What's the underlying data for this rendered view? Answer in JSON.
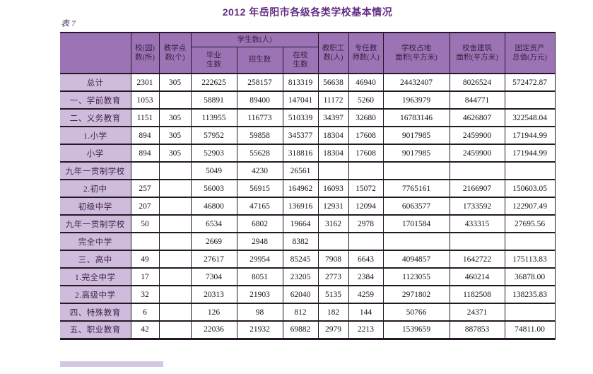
{
  "page": {
    "title": "2012 年岳阳市各级各类学校基本情况",
    "table_label": "表 7"
  },
  "colors": {
    "header_bg": "#9c74b6",
    "label_bg": "#cfbbdc",
    "title_color": "#632e82",
    "border": "#241726"
  },
  "table": {
    "header": {
      "col_school_count": "校(园)\n数(所)",
      "col_teaching_points": "教学点\n数(个)",
      "group_students": "学生数(人)",
      "col_graduates": "毕业\n生数",
      "col_enrolled": "招生数",
      "col_current_students": "在校\n生数",
      "col_staff": "教职工\n数(人)",
      "col_fulltime_teachers": "专任教\n师数(人)",
      "col_land_area": "学校占地\n面积(平方米)",
      "col_building_area": "校舍建筑\n面积(平方米)",
      "col_fixed_assets": "固定资产\n总值(万元)"
    },
    "rows": [
      {
        "label": "总计",
        "cells": [
          "2301",
          "305",
          "222625",
          "258157",
          "813319",
          "56638",
          "46940",
          "24432407",
          "8026524",
          "572472.87"
        ]
      },
      {
        "label": "一、学前教育",
        "cells": [
          "1053",
          "",
          "58891",
          "89400",
          "147041",
          "11172",
          "5260",
          "1963979",
          "844771",
          ""
        ]
      },
      {
        "label": "二、义务教育",
        "cells": [
          "1151",
          "305",
          "113955",
          "116773",
          "510339",
          "34397",
          "32680",
          "16783146",
          "4626807",
          "322548.04"
        ]
      },
      {
        "label": "1.小学",
        "cells": [
          "894",
          "305",
          "57952",
          "59858",
          "345377",
          "18304",
          "17608",
          "9017985",
          "2459900",
          "171944.99"
        ]
      },
      {
        "label": "小学",
        "cells": [
          "894",
          "305",
          "52903",
          "55628",
          "318816",
          "18304",
          "17608",
          "9017985",
          "2459900",
          "171944.99"
        ]
      },
      {
        "label": "九年一贯制学校",
        "cells": [
          "",
          "",
          "5049",
          "4230",
          "26561",
          "",
          "",
          "",
          "",
          ""
        ]
      },
      {
        "label": "2.初中",
        "cells": [
          "257",
          "",
          "56003",
          "56915",
          "164962",
          "16093",
          "15072",
          "7765161",
          "2166907",
          "150603.05"
        ]
      },
      {
        "label": "初级中学",
        "cells": [
          "207",
          "",
          "46800",
          "47165",
          "136916",
          "12931",
          "12094",
          "6063577",
          "1733592",
          "122907.49"
        ]
      },
      {
        "label": "九年一贯制学校",
        "cells": [
          "50",
          "",
          "6534",
          "6802",
          "19664",
          "3162",
          "2978",
          "1701584",
          "433315",
          "27695.56"
        ]
      },
      {
        "label": "完全中学",
        "cells": [
          "",
          "",
          "2669",
          "2948",
          "8382",
          "",
          "",
          "",
          "",
          ""
        ]
      },
      {
        "label": "三、高中",
        "cells": [
          "49",
          "",
          "27617",
          "29954",
          "85245",
          "7908",
          "6643",
          "4094857",
          "1642722",
          "175113.83"
        ]
      },
      {
        "label": "1.完全中学",
        "cells": [
          "17",
          "",
          "7304",
          "8051",
          "23205",
          "2773",
          "2384",
          "1123055",
          "460214",
          "36878.00"
        ]
      },
      {
        "label": "2.高级中学",
        "cells": [
          "32",
          "",
          "20313",
          "21903",
          "62040",
          "5135",
          "4259",
          "2971802",
          "1182508",
          "138235.83"
        ]
      },
      {
        "label": "四、特殊教育",
        "cells": [
          "6",
          "",
          "126",
          "98",
          "812",
          "182",
          "144",
          "50766",
          "24371",
          ""
        ]
      },
      {
        "label": "五、职业教育",
        "cells": [
          "42",
          "",
          "22036",
          "21932",
          "69882",
          "2979",
          "2213",
          "1539659",
          "887853",
          "74811.00"
        ]
      }
    ]
  }
}
